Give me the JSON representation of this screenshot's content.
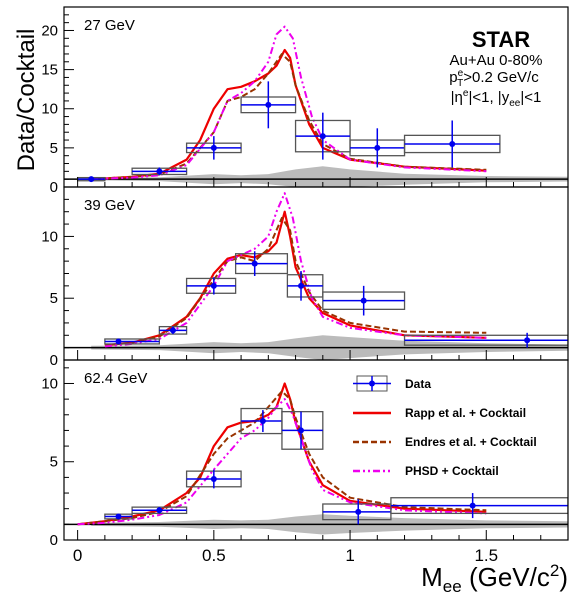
{
  "figure": {
    "y_label": "Data/Cocktail",
    "x_label_main": "M",
    "x_label_sub": "ee",
    "x_label_unit_open": " (GeV/c",
    "x_label_unit_sup": "2",
    "x_label_unit_close": ")",
    "x_ticks": [
      "0",
      "0.5",
      "1",
      "1.5"
    ],
    "experiment": "STAR",
    "system": "Au+Au 0-80%",
    "cut_pt_main": "p",
    "cut_pt_sup": "e",
    "cut_pt_sub": "T",
    "cut_pt_rest": ">0.2 GeV/c",
    "cut_eta_open": "|η",
    "cut_eta_sup": "e",
    "cut_eta_mid": "|<1, |y",
    "cut_eta_sub": "ee",
    "cut_eta_close": "|<1"
  },
  "legend": {
    "placement": "bottom-right",
    "items": [
      {
        "label": "Data",
        "style": "data"
      },
      {
        "label": "Rapp et al. + Cocktail",
        "style": "rapp"
      },
      {
        "label": "Endres et al. + Cocktail",
        "style": "endres"
      },
      {
        "label": "PHSD + Cocktail",
        "style": "phsd"
      }
    ]
  },
  "colors": {
    "data": "#0000ee",
    "rapp": "#ee0000",
    "endres": "#993300",
    "phsd": "#ee00ee",
    "band": "#bbbbbb",
    "sys_box": "#555555"
  },
  "chart_data": [
    {
      "type": "line",
      "title": "27 GeV",
      "xlim": [
        -0.05,
        1.8
      ],
      "ylim": [
        0,
        23
      ],
      "y_ticks": [
        "0",
        "5",
        "10",
        "15",
        "20"
      ],
      "data": {
        "x": [
          0.05,
          0.3,
          0.5,
          0.7,
          0.9,
          1.1,
          1.375
        ],
        "y": [
          1.0,
          2.0,
          5.0,
          10.5,
          6.5,
          5.0,
          5.5
        ],
        "yerr": [
          0.25,
          0.5,
          1.5,
          3.0,
          3.0,
          2.5,
          3.0
        ],
        "xbin": [
          [
            0.0,
            0.1
          ],
          [
            0.2,
            0.4
          ],
          [
            0.4,
            0.6
          ],
          [
            0.6,
            0.8
          ],
          [
            0.8,
            1.0
          ],
          [
            1.0,
            1.2
          ],
          [
            1.2,
            1.55
          ]
        ],
        "sys": [
          0.2,
          0.4,
          0.6,
          1.0,
          2.0,
          1.0,
          1.1
        ]
      },
      "band": {
        "x": [
          0.05,
          0.3,
          0.5,
          0.6,
          0.7,
          0.8,
          0.9,
          1.0,
          1.2,
          1.5,
          1.8
        ],
        "y": [
          0.3,
          0.5,
          1.3,
          1.0,
          1.3,
          2.5,
          3.3,
          2.5,
          1.4,
          0.8,
          0.6
        ]
      },
      "rapp": {
        "x": [
          0.05,
          0.2,
          0.3,
          0.4,
          0.45,
          0.5,
          0.55,
          0.6,
          0.65,
          0.7,
          0.73,
          0.76,
          0.78,
          0.8,
          0.85,
          0.9,
          1.0,
          1.2,
          1.5
        ],
        "y": [
          1.0,
          1.3,
          1.7,
          3.5,
          6.0,
          10.0,
          12.5,
          12.8,
          13.5,
          14.5,
          15.5,
          17.5,
          16.5,
          13.0,
          8.0,
          5.0,
          3.5,
          2.6,
          2.1
        ]
      },
      "endres": {
        "x": [
          0.05,
          0.2,
          0.3,
          0.4,
          0.5,
          0.55,
          0.6,
          0.65,
          0.7,
          0.75,
          0.78,
          0.8,
          0.85,
          0.9,
          1.0,
          1.2,
          1.5
        ],
        "y": [
          1.0,
          1.3,
          1.6,
          3.0,
          7.0,
          11.0,
          11.5,
          12.5,
          14.5,
          17.0,
          16.0,
          13.0,
          8.5,
          5.5,
          3.6,
          2.6,
          2.2
        ]
      },
      "phsd": {
        "x": [
          0.05,
          0.2,
          0.3,
          0.4,
          0.5,
          0.55,
          0.6,
          0.65,
          0.7,
          0.73,
          0.76,
          0.79,
          0.82,
          0.86,
          0.9,
          1.0,
          1.2,
          1.5
        ],
        "y": [
          1.0,
          1.2,
          1.5,
          2.8,
          7.0,
          11.0,
          12.0,
          13.5,
          16.0,
          19.5,
          20.5,
          19.0,
          14.0,
          9.0,
          6.0,
          3.5,
          2.5,
          2.0
        ]
      }
    },
    {
      "type": "line",
      "title": "39 GeV",
      "xlim": [
        -0.05,
        1.8
      ],
      "ylim": [
        0,
        14
      ],
      "y_ticks": [
        "0",
        "5",
        "10"
      ],
      "data": {
        "x": [
          0.15,
          0.35,
          0.5,
          0.65,
          0.82,
          1.05,
          1.65
        ],
        "y": [
          1.5,
          2.4,
          6.0,
          7.8,
          6.0,
          4.8,
          1.6
        ],
        "yerr": [
          0.2,
          0.3,
          0.7,
          1.0,
          1.2,
          1.2,
          0.6
        ],
        "xbin": [
          [
            0.1,
            0.3
          ],
          [
            0.3,
            0.4
          ],
          [
            0.4,
            0.58
          ],
          [
            0.58,
            0.77
          ],
          [
            0.77,
            0.9
          ],
          [
            0.9,
            1.2
          ],
          [
            1.2,
            1.8
          ]
        ],
        "sys": [
          0.2,
          0.3,
          0.6,
          0.8,
          0.9,
          0.7,
          0.4
        ]
      },
      "band": {
        "x": [
          0.05,
          0.3,
          0.5,
          0.6,
          0.7,
          0.8,
          0.9,
          1.0,
          1.2,
          1.5,
          1.8
        ],
        "y": [
          0.3,
          0.4,
          0.9,
          0.7,
          0.9,
          1.5,
          2.0,
          1.7,
          1.1,
          0.7,
          0.5
        ]
      },
      "rapp": {
        "x": [
          0.1,
          0.2,
          0.3,
          0.4,
          0.45,
          0.5,
          0.55,
          0.6,
          0.65,
          0.7,
          0.73,
          0.76,
          0.78,
          0.8,
          0.85,
          0.9,
          1.0,
          1.2,
          1.5
        ],
        "y": [
          1.2,
          1.4,
          2.0,
          3.5,
          5.0,
          7.0,
          8.2,
          8.5,
          8.3,
          8.8,
          9.5,
          12.0,
          10.0,
          7.5,
          5.0,
          3.8,
          2.8,
          2.0,
          1.8
        ]
      },
      "endres": {
        "x": [
          0.1,
          0.2,
          0.3,
          0.4,
          0.5,
          0.55,
          0.6,
          0.65,
          0.7,
          0.75,
          0.78,
          0.8,
          0.85,
          0.9,
          1.0,
          1.2,
          1.5
        ],
        "y": [
          1.2,
          1.4,
          1.9,
          3.4,
          6.5,
          8.0,
          8.3,
          8.0,
          9.0,
          11.5,
          10.5,
          8.0,
          5.5,
          4.0,
          3.0,
          2.3,
          2.2
        ]
      },
      "phsd": {
        "x": [
          0.1,
          0.2,
          0.3,
          0.4,
          0.5,
          0.55,
          0.6,
          0.65,
          0.7,
          0.73,
          0.76,
          0.79,
          0.82,
          0.86,
          0.9,
          1.0,
          1.2,
          1.5
        ],
        "y": [
          1.1,
          1.3,
          1.7,
          3.0,
          6.0,
          8.0,
          8.5,
          9.0,
          10.0,
          12.0,
          13.5,
          11.5,
          8.0,
          5.0,
          3.5,
          2.6,
          2.0,
          1.8
        ]
      }
    },
    {
      "type": "line",
      "title": "62.4 GeV",
      "xlim": [
        -0.05,
        1.8
      ],
      "ylim": [
        0,
        11.5
      ],
      "y_ticks": [
        "0",
        "5",
        "10"
      ],
      "data": {
        "x": [
          0.15,
          0.3,
          0.5,
          0.68,
          0.82,
          1.03,
          1.45
        ],
        "y": [
          1.5,
          1.9,
          3.9,
          7.6,
          7.0,
          1.8,
          2.2
        ],
        "yerr": [
          0.15,
          0.2,
          0.6,
          0.7,
          1.2,
          0.8,
          0.8
        ],
        "xbin": [
          [
            0.1,
            0.2
          ],
          [
            0.2,
            0.4
          ],
          [
            0.4,
            0.6
          ],
          [
            0.6,
            0.75
          ],
          [
            0.75,
            0.9
          ],
          [
            0.9,
            1.15
          ],
          [
            1.15,
            1.8
          ]
        ],
        "sys": [
          0.15,
          0.2,
          0.5,
          0.8,
          1.2,
          0.5,
          0.5
        ]
      },
      "band": {
        "x": [
          0.05,
          0.3,
          0.5,
          0.6,
          0.7,
          0.8,
          0.9,
          1.0,
          1.2,
          1.5,
          1.8
        ],
        "y": [
          0.2,
          0.3,
          0.6,
          0.5,
          0.6,
          1.0,
          1.3,
          1.1,
          0.8,
          0.5,
          0.4
        ]
      },
      "rapp": {
        "x": [
          0.0,
          0.1,
          0.2,
          0.3,
          0.4,
          0.45,
          0.5,
          0.55,
          0.6,
          0.65,
          0.7,
          0.73,
          0.76,
          0.78,
          0.8,
          0.85,
          0.9,
          1.0,
          1.2,
          1.5
        ],
        "y": [
          1.0,
          1.2,
          1.5,
          1.9,
          3.0,
          4.0,
          6.0,
          7.2,
          7.5,
          7.6,
          8.0,
          8.5,
          10.0,
          9.0,
          7.5,
          5.0,
          3.5,
          2.5,
          2.0,
          1.8
        ]
      },
      "endres": {
        "x": [
          0.0,
          0.1,
          0.2,
          0.3,
          0.4,
          0.5,
          0.55,
          0.6,
          0.65,
          0.7,
          0.75,
          0.78,
          0.8,
          0.85,
          0.9,
          1.0,
          1.2,
          1.5
        ],
        "y": [
          1.0,
          1.2,
          1.4,
          1.8,
          2.8,
          5.5,
          6.5,
          7.0,
          7.5,
          8.5,
          9.5,
          9.0,
          7.8,
          5.5,
          4.0,
          2.7,
          2.1,
          1.9
        ]
      },
      "phsd": {
        "x": [
          0.0,
          0.1,
          0.2,
          0.3,
          0.4,
          0.5,
          0.55,
          0.6,
          0.65,
          0.7,
          0.73,
          0.76,
          0.79,
          0.82,
          0.86,
          0.9,
          1.0,
          1.2,
          1.5
        ],
        "y": [
          1.0,
          1.1,
          1.3,
          1.6,
          2.4,
          4.5,
          5.5,
          6.5,
          7.0,
          7.8,
          8.5,
          9.0,
          8.0,
          6.5,
          4.5,
          3.2,
          2.4,
          1.9,
          1.7
        ]
      }
    }
  ]
}
